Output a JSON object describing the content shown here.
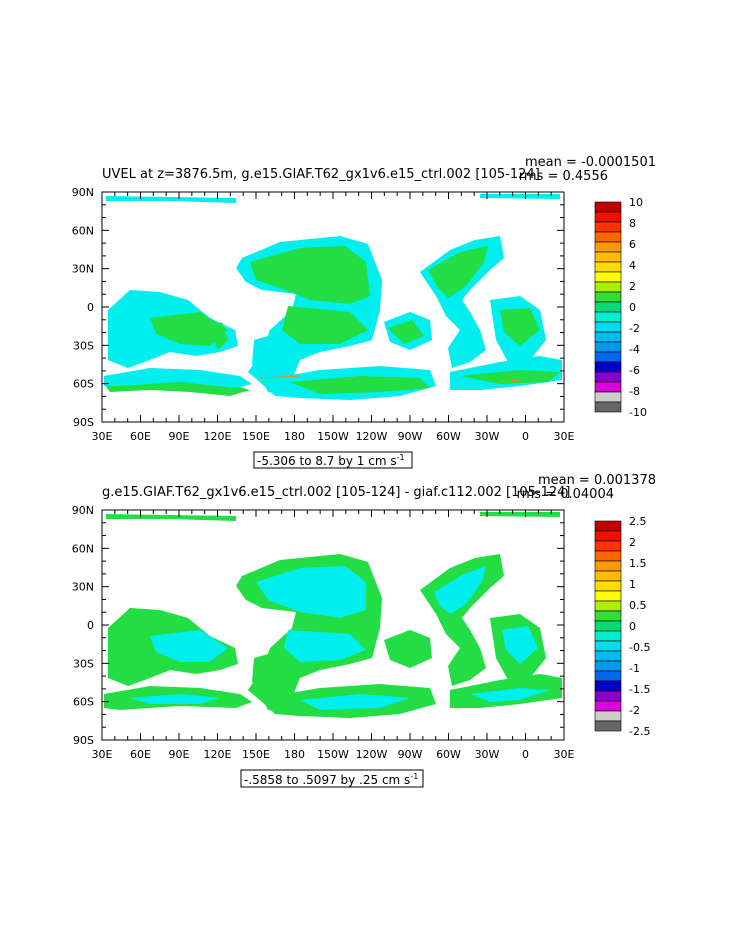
{
  "colors": {
    "cyan": "#00eeee",
    "green": "#22dd44",
    "yellow_green": "#88ee22",
    "orange_dot": "#ff8800"
  },
  "panel1": {
    "title": "UVEL at z=3876.5m, g.e15.GIAF.T62_gx1v6.e15_ctrl.002 [105-124]",
    "mean_text": "mean = -0.0001501",
    "rms_text": "rms = 0.4556",
    "range_text_main": "-5.306 to 8.7 by 1 cm s",
    "range_text_sup": "-1"
  },
  "panel2": {
    "title": "g.e15.GIAF.T62_gx1v6.e15_ctrl.002 [105-124] - giaf.c112.002 [105-124]",
    "mean_text": "mean = 0.001378",
    "rms_text": "rms = 0.04004",
    "range_text_main": "-.5858 to .5097 by .25 cm s",
    "range_text_sup": "-1"
  },
  "chart_data": [
    {
      "type": "heatmap",
      "title": "UVEL at z=3876.5m, g.e15.GIAF.T62_gx1v6.e15_ctrl.002 [105-124]",
      "annotations": [
        "mean = -0.0001501",
        "rms = 0.4556",
        "-5.306 to 8.7 by 1 cm s-1"
      ],
      "x_ticks": [
        "30E",
        "60E",
        "90E",
        "120E",
        "150E",
        "180",
        "150W",
        "120W",
        "90W",
        "60W",
        "30W",
        "0",
        "30E"
      ],
      "y_ticks": [
        "90N",
        "60N",
        "30N",
        "0",
        "30S",
        "60S",
        "90S"
      ],
      "colorbar": {
        "labels": [
          "10",
          "8",
          "6",
          "4",
          "2",
          "0",
          "-2",
          "-4",
          "-6",
          "-8",
          "-10"
        ],
        "colors": [
          "#c00000",
          "#ee1100",
          "#ff3300",
          "#ff6600",
          "#ff9900",
          "#ffbb00",
          "#ffdd00",
          "#ffff00",
          "#aaee00",
          "#33dd33",
          "#00dd77",
          "#00eecc",
          "#00ddee",
          "#00bbee",
          "#0099ee",
          "#0066ee",
          "#0000cc",
          "#8800cc",
          "#dd00dd",
          "#cccccc",
          "#666666"
        ]
      },
      "legend_position": "right"
    },
    {
      "type": "heatmap",
      "title": "g.e15.GIAF.T62_gx1v6.e15_ctrl.002 [105-124] - giaf.c112.002 [105-124]",
      "annotations": [
        "mean = 0.001378",
        "rms = 0.04004",
        "-.5858 to .5097 by .25 cm s-1"
      ],
      "x_ticks": [
        "30E",
        "60E",
        "90E",
        "120E",
        "150E",
        "180",
        "150W",
        "120W",
        "90W",
        "60W",
        "30W",
        "0",
        "30E"
      ],
      "y_ticks": [
        "90N",
        "60N",
        "30N",
        "0",
        "30S",
        "60S",
        "90S"
      ],
      "colorbar": {
        "labels": [
          "2.5",
          "2",
          "1.5",
          "1",
          "0.5",
          "0",
          "-0.5",
          "-1",
          "-1.5",
          "-2",
          "-2.5"
        ],
        "colors": [
          "#c00000",
          "#ee1100",
          "#ff3300",
          "#ff6600",
          "#ff9900",
          "#ffbb00",
          "#ffdd00",
          "#ffff00",
          "#aaee00",
          "#33dd33",
          "#00dd77",
          "#00eecc",
          "#00ddee",
          "#00bbee",
          "#0099ee",
          "#0066ee",
          "#0000cc",
          "#8800cc",
          "#dd00dd",
          "#cccccc",
          "#666666"
        ]
      },
      "legend_position": "right"
    }
  ]
}
